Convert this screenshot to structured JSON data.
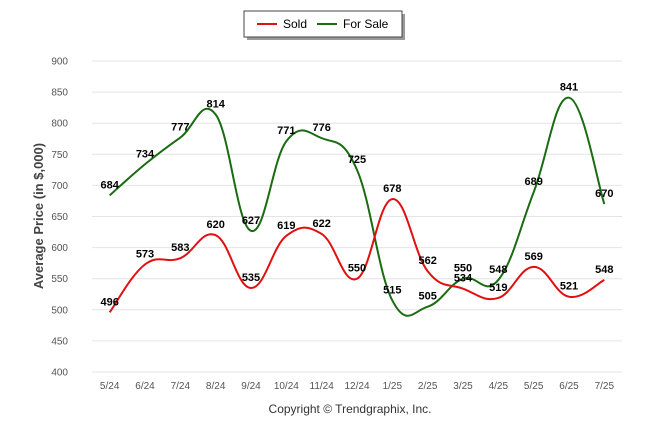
{
  "chart_data": {
    "type": "line",
    "categories": [
      "5/24",
      "6/24",
      "7/24",
      "8/24",
      "9/24",
      "10/24",
      "11/24",
      "12/24",
      "1/25",
      "2/25",
      "3/25",
      "4/25",
      "5/25",
      "6/25",
      "7/25"
    ],
    "series": [
      {
        "name": "Sold",
        "color": "#e01010",
        "values": [
          496,
          573,
          583,
          620,
          535,
          619,
          622,
          550,
          678,
          562,
          534,
          519,
          569,
          521,
          548
        ]
      },
      {
        "name": "For Sale",
        "color": "#1a6b12",
        "values": [
          684,
          734,
          777,
          814,
          627,
          771,
          776,
          725,
          515,
          505,
          550,
          548,
          689,
          841,
          670
        ]
      }
    ],
    "ylabel": "Average Price (in $,000)",
    "xlabel": "",
    "yticks": [
      400,
      450,
      500,
      550,
      600,
      650,
      700,
      750,
      800,
      850,
      900
    ],
    "ylim": [
      400,
      900
    ],
    "grid": true,
    "legend_position": "top-center",
    "footer": "Copyright © Trendgraphix, Inc."
  }
}
